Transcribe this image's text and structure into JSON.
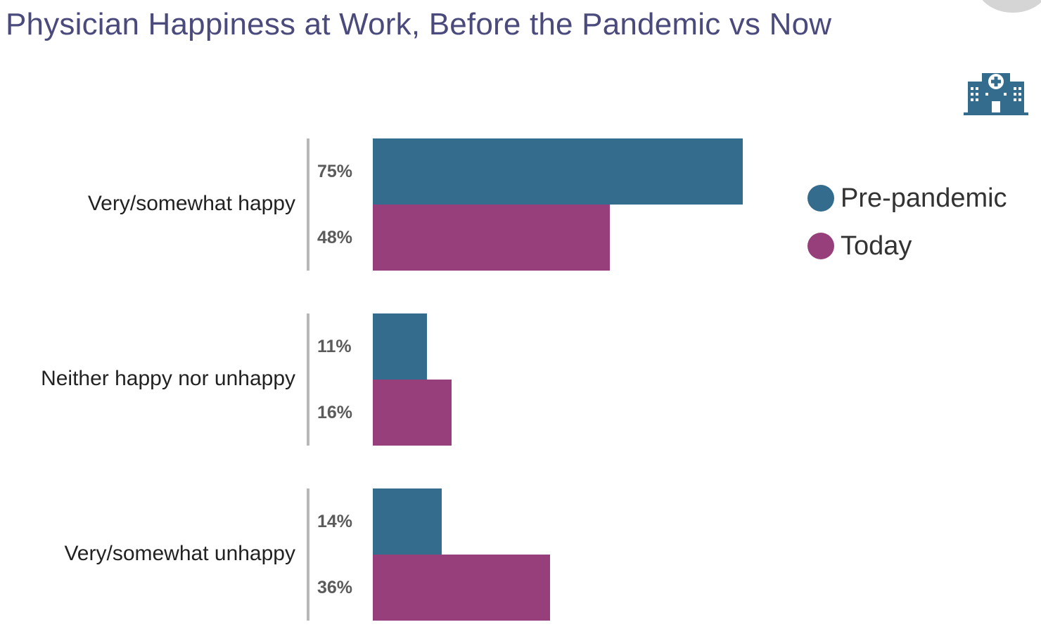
{
  "title": "Physician Happiness at Work, Before the Pandemic vs Now",
  "icons": {
    "corner": "hospital-building-icon"
  },
  "colors": {
    "pre_pandemic": "#336c8c",
    "today": "#963f7a",
    "title": "#4a4a7c"
  },
  "chart_data": {
    "type": "bar",
    "orientation": "horizontal",
    "title": "Physician Happiness at Work, Before the Pandemic vs Now",
    "categories": [
      "Very/somewhat happy",
      "Neither happy nor unhappy",
      "Very/somewhat unhappy"
    ],
    "series": [
      {
        "name": "Pre-pandemic",
        "values": [
          75,
          11,
          14
        ],
        "labels": [
          "75%",
          "11%",
          "14%"
        ]
      },
      {
        "name": "Today",
        "values": [
          48,
          16,
          36
        ],
        "labels": [
          "48%",
          "16%",
          "36%"
        ]
      }
    ],
    "value_unit": "%",
    "xlim": [
      0,
      75
    ],
    "legend_position": "right",
    "grid": false
  }
}
